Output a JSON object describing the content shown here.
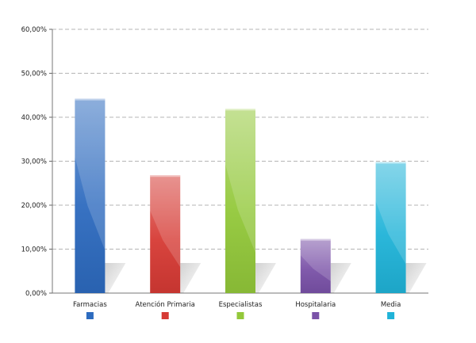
{
  "chart_data": {
    "type": "bar",
    "title": "",
    "xlabel": "",
    "ylabel": "",
    "categories": [
      "Farmacias",
      "Atención Primaria",
      "Especialistas",
      "Hospitalaria",
      "Media"
    ],
    "values": [
      44.2,
      26.8,
      41.9,
      12.3,
      29.8
    ],
    "colors": [
      "#2d6bbf",
      "#d63a34",
      "#93c83a",
      "#7a52a8",
      "#20b3d8"
    ],
    "ylim": [
      0,
      60
    ],
    "yticks": [
      0,
      10,
      20,
      30,
      40,
      50,
      60
    ],
    "ytick_labels": [
      "0,00%",
      "10,00%",
      "20,00%",
      "30,00%",
      "40,00%",
      "50,00%",
      "60,00%"
    ],
    "grid": true,
    "legend": "below each category label as color swatch"
  }
}
